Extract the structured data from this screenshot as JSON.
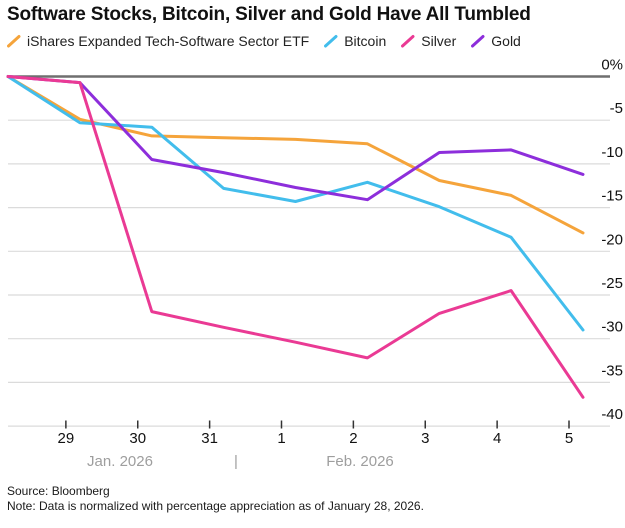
{
  "title": "Software Stocks, Bitcoin, Silver and Gold Have All Tumbled",
  "footer": {
    "source": "Source: Bloomberg",
    "note": "Note: Data is normalized with percentage appreciation as of January 28, 2026."
  },
  "colors": {
    "grid": "#dbdbdb",
    "zero_line": "#6f6f6f",
    "axis_text": "#111111",
    "month_text": "#9e9e9e",
    "tick": "#333333"
  },
  "chart_data": {
    "type": "line",
    "x": [
      "Jan 28",
      "Jan 29",
      "Jan 30",
      "Jan 31",
      "Feb 1",
      "Feb 2",
      "Feb 3",
      "Feb 4",
      "Feb 5"
    ],
    "x_tick_labels": [
      "29",
      "30",
      "31",
      "1",
      "2",
      "3",
      "4",
      "5"
    ],
    "x_axis": {
      "month_left": "Jan. 2026",
      "separator": "|",
      "month_right": "Feb. 2026"
    },
    "y_ticks": [
      0,
      -5,
      -10,
      -15,
      -20,
      -25,
      -30,
      -35,
      -40
    ],
    "y_tick_labels": [
      "0%",
      "-5",
      "-10",
      "-15",
      "-20",
      "-25",
      "-30",
      "-35",
      "-40"
    ],
    "ylim": [
      -40,
      0
    ],
    "grid": "horizontal",
    "legend_position": "top",
    "series": [
      {
        "name": "iShares Expanded Tech-Software Sector ETF",
        "color": "#F5A43B",
        "values": [
          0,
          -4.9,
          -6.8,
          -7.0,
          -7.2,
          -7.7,
          -11.9,
          -13.6,
          -17.9
        ]
      },
      {
        "name": "Bitcoin",
        "color": "#42BDEC",
        "values": [
          0,
          -5.3,
          -5.8,
          -12.8,
          -14.3,
          -12.1,
          -14.9,
          -18.4,
          -29.0
        ]
      },
      {
        "name": "Silver",
        "color": "#EA3A94",
        "values": [
          0,
          -0.7,
          -26.9,
          -28.7,
          -30.4,
          -32.2,
          -27.1,
          -24.5,
          -36.7
        ]
      },
      {
        "name": "Gold",
        "color": "#8D2EDB",
        "values": [
          0,
          -0.7,
          -9.5,
          -11.0,
          -12.7,
          -14.1,
          -8.7,
          -8.4,
          -11.2
        ]
      }
    ],
    "z_order": [
      0,
      1,
      3,
      2
    ]
  }
}
